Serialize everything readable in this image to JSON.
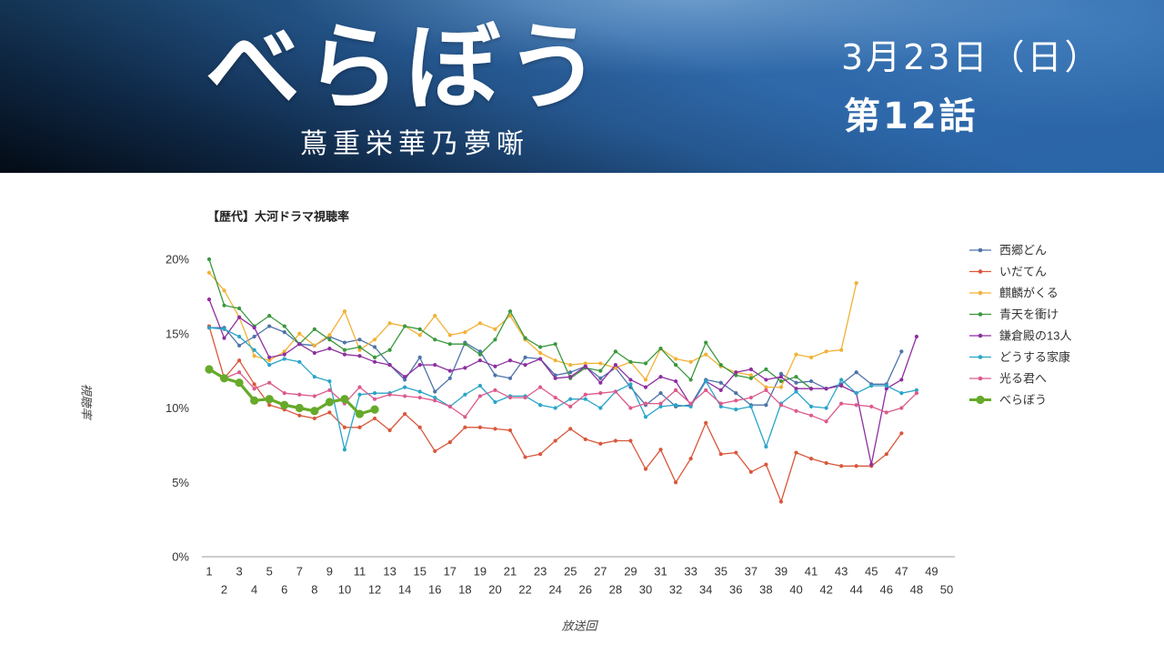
{
  "header": {
    "title": "べらぼう",
    "subtitle": "蔦重栄華乃夢噺",
    "date": "3月23日（日）",
    "episode": "第12話"
  },
  "chart_data": {
    "type": "line",
    "title": "【歴代】大河ドラマ視聴率",
    "xlabel": "放送回",
    "ylabel": "視聴率",
    "xlim": [
      1,
      50
    ],
    "ylim": [
      0,
      20
    ],
    "grid": false,
    "legend_position": "right",
    "x_ticks": [
      1,
      2,
      3,
      4,
      5,
      6,
      7,
      8,
      9,
      10,
      11,
      12,
      13,
      14,
      15,
      16,
      17,
      18,
      19,
      20,
      21,
      22,
      23,
      24,
      25,
      26,
      27,
      28,
      29,
      30,
      31,
      32,
      33,
      34,
      35,
      36,
      37,
      38,
      39,
      40,
      41,
      42,
      43,
      44,
      45,
      46,
      47,
      48,
      49,
      50
    ],
    "y_ticks": [
      {
        "value": 0,
        "label": "0%"
      },
      {
        "value": 5,
        "label": "5%"
      },
      {
        "value": 10,
        "label": "10%"
      },
      {
        "value": 15,
        "label": "15%"
      },
      {
        "value": 20,
        "label": "20%"
      }
    ],
    "series": [
      {
        "name": "西郷どん",
        "color": "#4e73a8",
        "values": [
          15.4,
          15.4,
          14.2,
          14.8,
          15.5,
          15.1,
          14.3,
          14.2,
          14.8,
          14.4,
          14.6,
          14.1,
          12.9,
          11.9,
          13.4,
          11.1,
          12.0,
          14.4,
          13.8,
          12.2,
          12.0,
          13.4,
          13.3,
          12.2,
          12.4,
          12.8,
          12.0,
          12.7,
          11.4,
          10.2,
          11.0,
          10.1,
          10.2,
          11.9,
          11.7,
          11.0,
          10.2,
          10.2,
          12.3,
          11.7,
          11.8,
          11.3,
          11.6,
          12.4,
          11.6,
          11.6,
          13.8
        ]
      },
      {
        "name": "いだてん",
        "color": "#d9573b",
        "values": [
          15.5,
          12.0,
          13.2,
          11.6,
          10.2,
          9.9,
          9.5,
          9.3,
          9.7,
          8.7,
          8.7,
          9.3,
          8.5,
          9.6,
          8.7,
          7.1,
          7.7,
          8.7,
          8.7,
          8.6,
          8.5,
          6.7,
          6.9,
          7.8,
          8.6,
          7.9,
          7.6,
          7.8,
          7.8,
          5.9,
          7.2,
          5.0,
          6.6,
          9.0,
          6.9,
          7.0,
          5.7,
          6.2,
          3.7,
          7.0,
          6.6,
          6.3,
          6.1,
          6.1,
          6.1,
          6.9,
          8.3
        ]
      },
      {
        "name": "麒麟がくる",
        "color": "#f2b136",
        "values": [
          19.1,
          17.9,
          16.1,
          13.5,
          13.2,
          13.8,
          15.0,
          14.2,
          14.9,
          16.5,
          13.9,
          14.6,
          15.7,
          15.5,
          14.9,
          16.2,
          14.9,
          15.1,
          15.7,
          15.3,
          16.2,
          14.6,
          13.7,
          13.2,
          12.9,
          13.0,
          13.0,
          12.7,
          13.1,
          11.9,
          14.0,
          13.3,
          13.1,
          13.6,
          12.8,
          12.4,
          12.2,
          11.4,
          11.4,
          13.6,
          13.4,
          13.8,
          13.9,
          18.4
        ]
      },
      {
        "name": "青天を衝け",
        "color": "#3a983d",
        "values": [
          20.0,
          16.9,
          16.7,
          15.5,
          16.2,
          15.5,
          14.3,
          15.3,
          14.6,
          13.9,
          14.1,
          13.4,
          13.9,
          15.5,
          15.3,
          14.6,
          14.3,
          14.3,
          13.6,
          14.6,
          16.5,
          14.7,
          14.1,
          14.3,
          12.0,
          12.7,
          12.5,
          13.8,
          13.1,
          13.0,
          14.0,
          12.9,
          11.9,
          14.4,
          12.9,
          12.2,
          12.0,
          12.6,
          11.8,
          12.1,
          11.3
        ]
      },
      {
        "name": "鎌倉殿の13人",
        "color": "#8e2fa0",
        "values": [
          17.3,
          14.7,
          16.1,
          15.4,
          13.4,
          13.6,
          14.3,
          13.7,
          14.0,
          13.6,
          13.5,
          13.1,
          12.9,
          12.1,
          12.9,
          12.9,
          12.5,
          12.7,
          13.2,
          12.8,
          13.2,
          12.9,
          13.3,
          12.0,
          12.1,
          12.8,
          11.7,
          12.9,
          11.9,
          11.4,
          12.1,
          11.8,
          10.2,
          11.8,
          11.2,
          12.4,
          12.6,
          11.9,
          12.1,
          11.3,
          11.3,
          11.3,
          11.5,
          11.0,
          6.2,
          11.3,
          11.9,
          14.8
        ]
      },
      {
        "name": "どうする家康",
        "color": "#2aa5c8",
        "values": [
          15.4,
          15.3,
          14.8,
          13.9,
          12.9,
          13.3,
          13.1,
          12.1,
          11.8,
          7.2,
          10.9,
          11.0,
          11.0,
          11.4,
          11.1,
          10.7,
          10.1,
          10.9,
          11.5,
          10.4,
          10.8,
          10.8,
          10.2,
          10.0,
          10.6,
          10.6,
          10.0,
          11.1,
          11.6,
          9.4,
          10.1,
          10.2,
          10.1,
          11.8,
          10.1,
          9.9,
          10.1,
          7.4,
          10.3,
          11.1,
          10.1,
          10.0,
          11.9,
          11.0,
          11.5,
          11.5,
          11.0,
          11.2
        ]
      },
      {
        "name": "光る君へ",
        "color": "#dc5a8c",
        "values": [
          12.7,
          12.0,
          12.4,
          11.3,
          11.7,
          11.0,
          10.9,
          10.8,
          11.2,
          10.3,
          11.4,
          10.6,
          10.9,
          10.8,
          10.7,
          10.5,
          10.1,
          9.4,
          10.8,
          11.2,
          10.7,
          10.7,
          11.4,
          10.7,
          10.1,
          10.9,
          11.0,
          11.1,
          10.0,
          10.3,
          10.3,
          11.2,
          10.3,
          11.2,
          10.3,
          10.5,
          10.7,
          11.2,
          10.2,
          9.8,
          9.5,
          9.1,
          10.3,
          10.2,
          10.1,
          9.7,
          10.0,
          11.0
        ]
      },
      {
        "name": "べらぼう",
        "color": "#66aa2a",
        "emphasis": true,
        "values": [
          12.6,
          12.0,
          11.7,
          10.5,
          10.6,
          10.2,
          10.0,
          9.8,
          10.4,
          10.6,
          9.6,
          9.9
        ]
      }
    ]
  }
}
